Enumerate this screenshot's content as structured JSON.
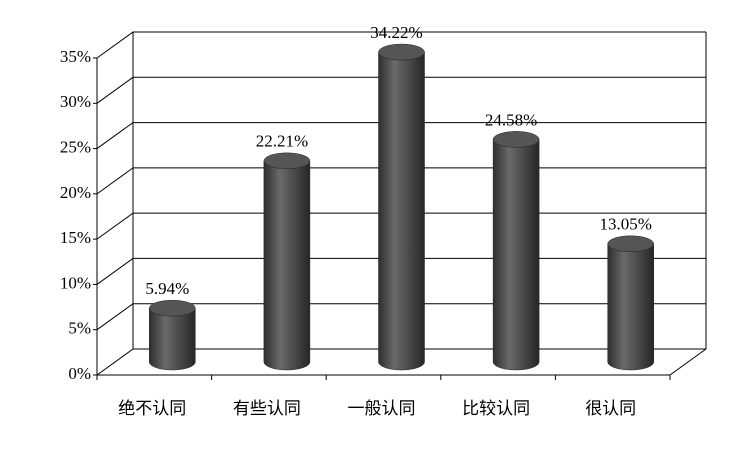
{
  "chart_data": {
    "type": "bar",
    "categories": [
      "绝不认同",
      "有些认同",
      "一般认同",
      "比较认同",
      "很认同"
    ],
    "values": [
      5.94,
      22.21,
      34.22,
      24.58,
      13.05
    ],
    "value_labels": [
      "5.94%",
      "22.21%",
      "34.22%",
      "24.58%",
      "13.05%"
    ],
    "color": "#4d4d4d",
    "ylim": [
      0,
      35
    ],
    "yticks": [
      {
        "value": 0,
        "label": "0%"
      },
      {
        "value": 5,
        "label": "5%"
      },
      {
        "value": 10,
        "label": "10%"
      },
      {
        "value": 15,
        "label": "15%"
      },
      {
        "value": 20,
        "label": "20%"
      },
      {
        "value": 25,
        "label": "25%"
      },
      {
        "value": 30,
        "label": "30%"
      },
      {
        "value": 35,
        "label": "35%"
      }
    ],
    "grid": true
  }
}
